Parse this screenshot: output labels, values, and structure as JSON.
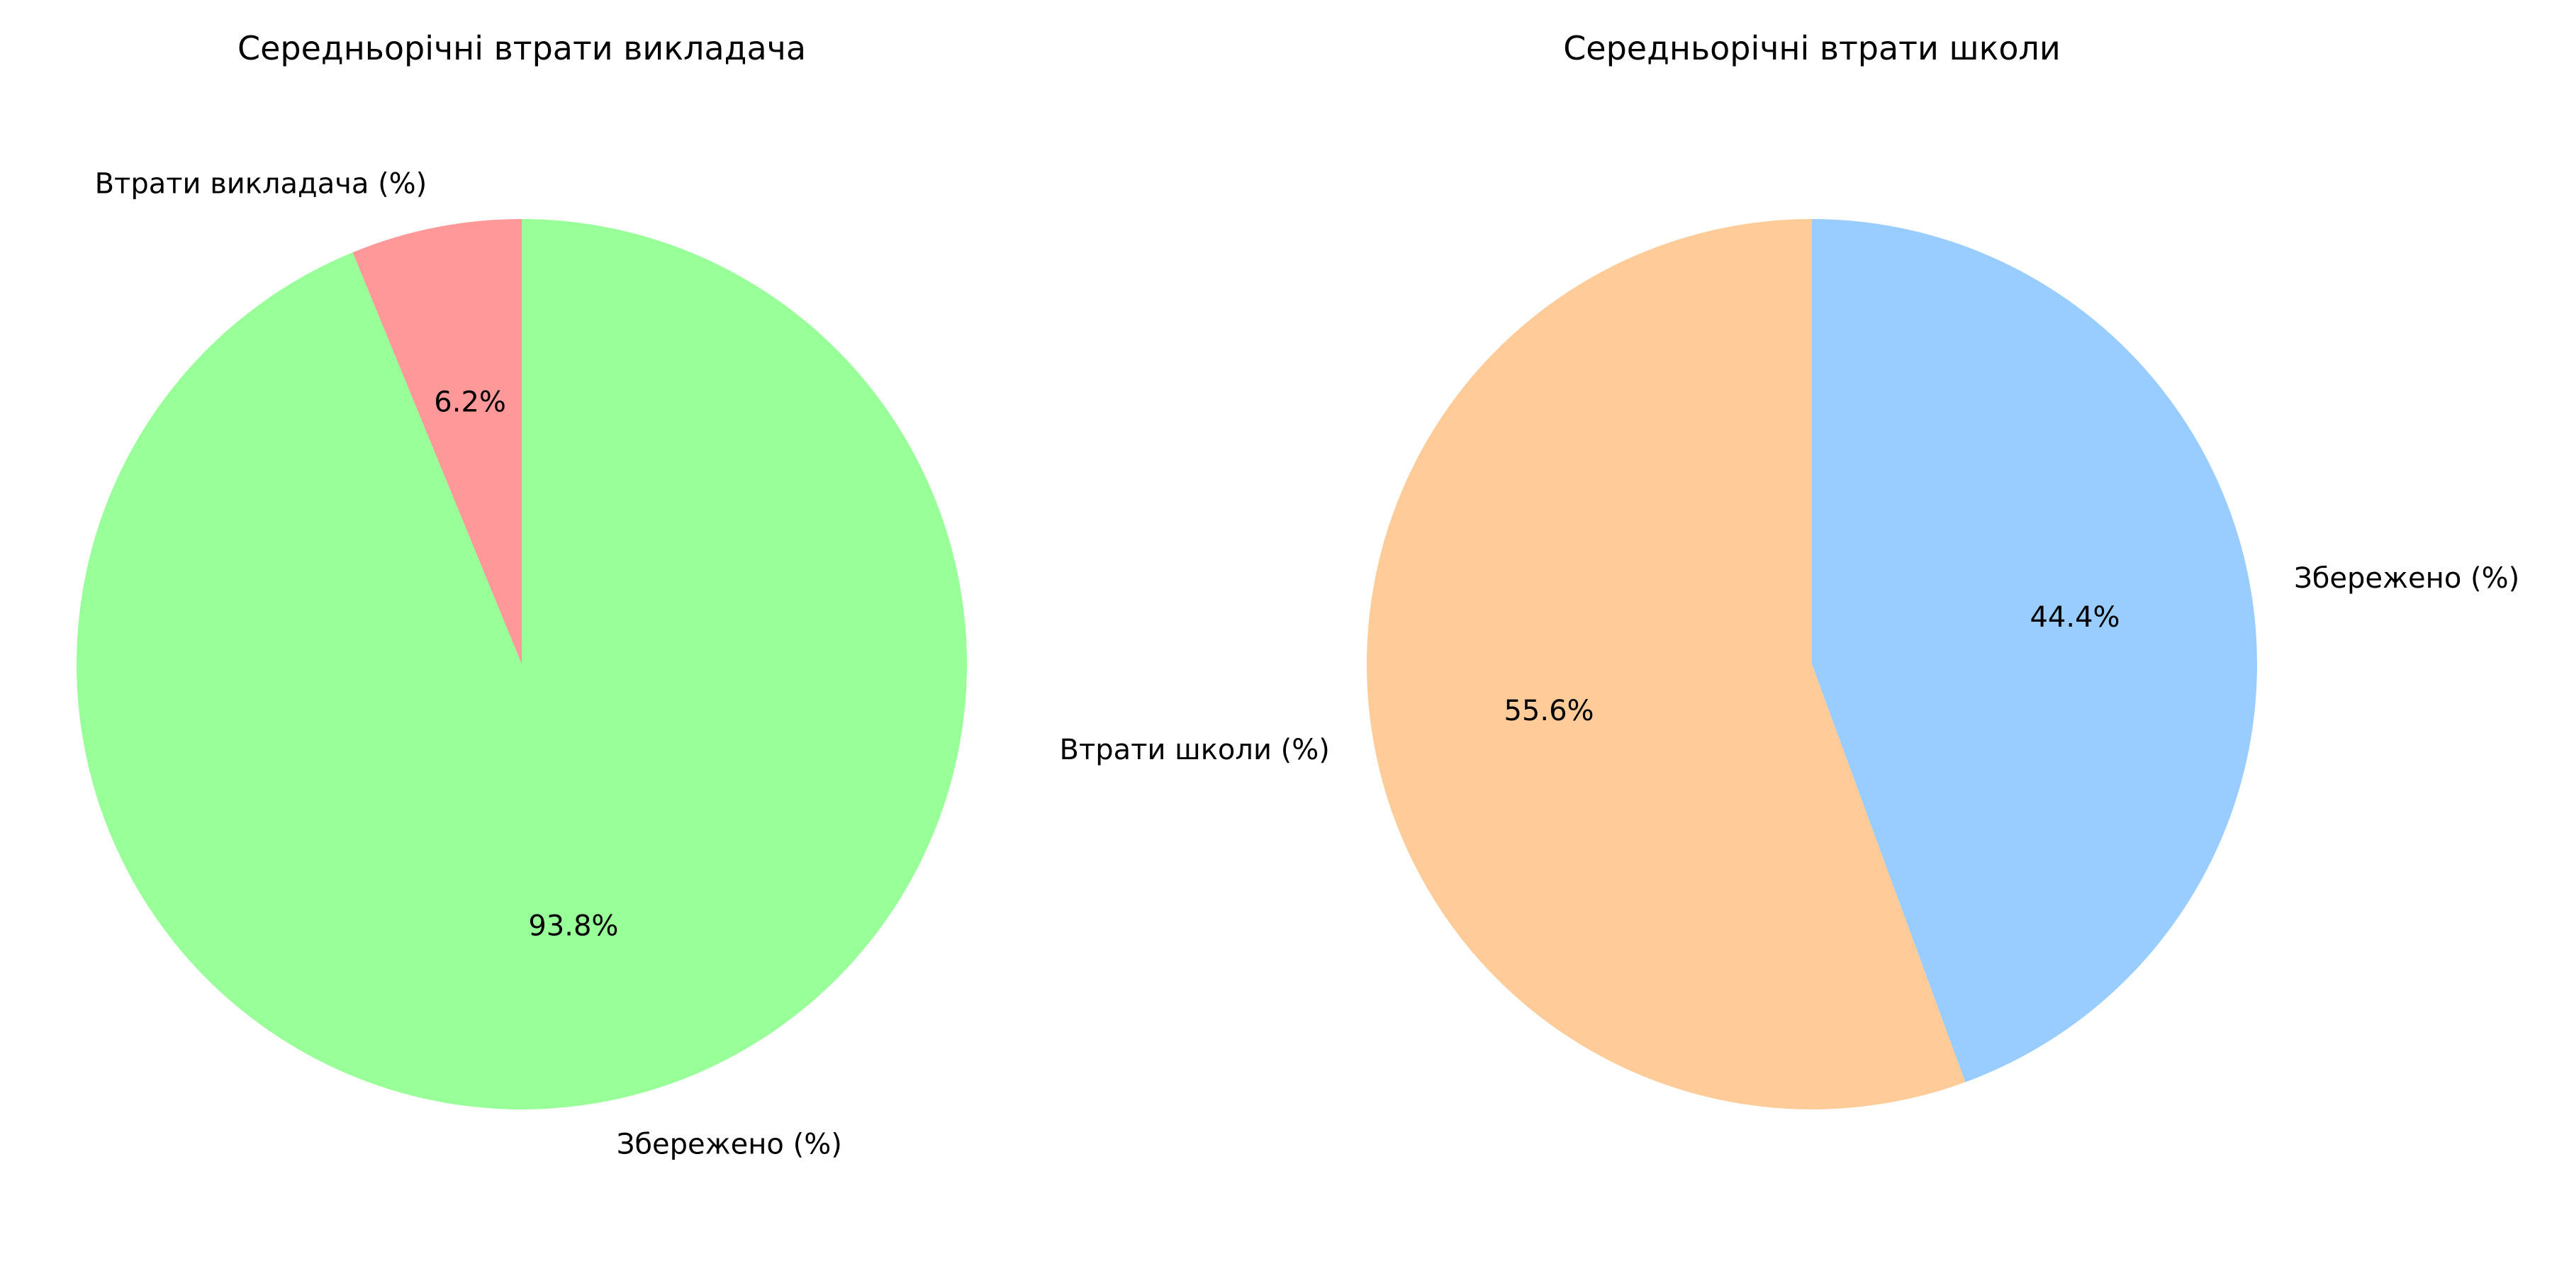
{
  "chart_data": [
    {
      "type": "pie",
      "title": "Середньорічні втрати викладача",
      "start_angle_deg": 90,
      "direction": "counterclockwise",
      "slices": [
        {
          "label": "Втрати викладача (%)",
          "value": 6.2,
          "pct_label": "6.2%",
          "color": "#ff9999"
        },
        {
          "label": "Збережено (%)",
          "value": 93.8,
          "pct_label": "93.8%",
          "color": "#99ff99"
        }
      ]
    },
    {
      "type": "pie",
      "title": "Середньорічні втрати школи",
      "start_angle_deg": 90,
      "direction": "counterclockwise",
      "slices": [
        {
          "label": "Втрати школи (%)",
          "value": 55.6,
          "pct_label": "55.6%",
          "color": "#ffcc99"
        },
        {
          "label": "Збережено (%)",
          "value": 44.4,
          "pct_label": "44.4%",
          "color": "#99ccff"
        }
      ]
    }
  ]
}
